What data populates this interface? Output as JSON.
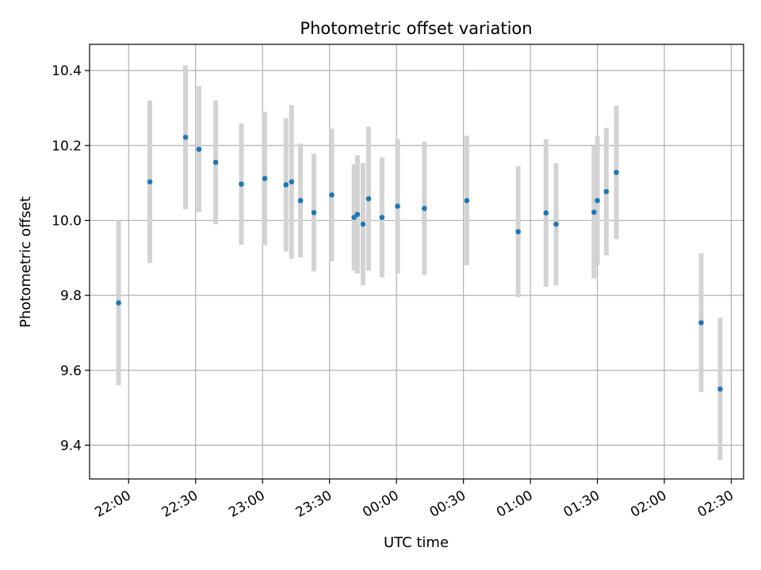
{
  "chart_data": {
    "type": "scatter",
    "title": "Photometric offset variation",
    "xlabel": "UTC time",
    "ylabel": "Photometric offset",
    "x_ticks": [
      {
        "t": 0,
        "label": "22:00"
      },
      {
        "t": 30,
        "label": "22:30"
      },
      {
        "t": 60,
        "label": "23:00"
      },
      {
        "t": 90,
        "label": "23:30"
      },
      {
        "t": 120,
        "label": "00:00"
      },
      {
        "t": 150,
        "label": "00:30"
      },
      {
        "t": 180,
        "label": "01:00"
      },
      {
        "t": 210,
        "label": "01:30"
      },
      {
        "t": 240,
        "label": "02:00"
      },
      {
        "t": 270,
        "label": "02:30"
      }
    ],
    "x_note": "x values are minutes after 22:00 UTC",
    "xlim": [
      -17.5,
      275.5
    ],
    "ylim": [
      9.31,
      10.47
    ],
    "y_ticks": [
      9.4,
      9.6,
      9.8,
      10.0,
      10.2,
      10.4
    ],
    "grid": true,
    "colors": {
      "point": "#1f77b4",
      "errorbar": "#d3d3d3",
      "grid": "#b0b0b0"
    },
    "points": [
      {
        "x": -4.5,
        "y": 9.78,
        "err": 0.22
      },
      {
        "x": 9.5,
        "y": 10.103,
        "err": 0.217
      },
      {
        "x": 25.5,
        "y": 10.222,
        "err": 0.192
      },
      {
        "x": 31.5,
        "y": 10.19,
        "err": 0.168
      },
      {
        "x": 39,
        "y": 10.155,
        "err": 0.165
      },
      {
        "x": 50.5,
        "y": 10.097,
        "err": 0.162
      },
      {
        "x": 61,
        "y": 10.112,
        "err": 0.178
      },
      {
        "x": 70.5,
        "y": 10.095,
        "err": 0.178
      },
      {
        "x": 73,
        "y": 10.103,
        "err": 0.205
      },
      {
        "x": 77,
        "y": 10.053,
        "err": 0.152
      },
      {
        "x": 83,
        "y": 10.021,
        "err": 0.157
      },
      {
        "x": 91,
        "y": 10.068,
        "err": 0.177
      },
      {
        "x": 101,
        "y": 10.008,
        "err": 0.142
      },
      {
        "x": 102.5,
        "y": 10.016,
        "err": 0.158
      },
      {
        "x": 105,
        "y": 9.99,
        "err": 0.163
      },
      {
        "x": 107.5,
        "y": 10.058,
        "err": 0.192
      },
      {
        "x": 113.5,
        "y": 10.008,
        "err": 0.16
      },
      {
        "x": 120.5,
        "y": 10.038,
        "err": 0.18
      },
      {
        "x": 132.5,
        "y": 10.032,
        "err": 0.178
      },
      {
        "x": 151.5,
        "y": 10.053,
        "err": 0.173
      },
      {
        "x": 174.5,
        "y": 9.97,
        "err": 0.175
      },
      {
        "x": 187,
        "y": 10.02,
        "err": 0.197
      },
      {
        "x": 191.5,
        "y": 9.99,
        "err": 0.163
      },
      {
        "x": 208.5,
        "y": 10.022,
        "err": 0.177
      },
      {
        "x": 210,
        "y": 10.053,
        "err": 0.172
      },
      {
        "x": 214,
        "y": 10.077,
        "err": 0.17
      },
      {
        "x": 218.5,
        "y": 10.128,
        "err": 0.178
      },
      {
        "x": 256.5,
        "y": 9.727,
        "err": 0.185
      },
      {
        "x": 265,
        "y": 9.55,
        "err": 0.19
      }
    ]
  }
}
